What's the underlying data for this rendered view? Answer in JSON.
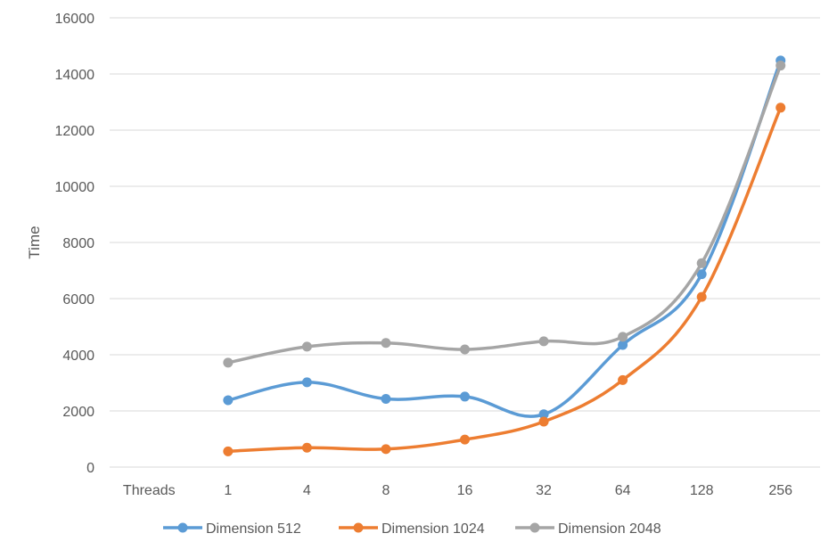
{
  "chart_data": {
    "type": "line",
    "title": "",
    "xlabel": "",
    "ylabel": "Time",
    "category_axis_label": "Threads",
    "categories": [
      "1",
      "4",
      "8",
      "16",
      "32",
      "64",
      "128",
      "256"
    ],
    "ylim": [
      0,
      16000
    ],
    "yticks": [
      0,
      2000,
      4000,
      6000,
      8000,
      10000,
      12000,
      14000,
      16000
    ],
    "grid": true,
    "legend_position": "bottom",
    "series": [
      {
        "name": "Dimension 512",
        "color": "#5B9BD5",
        "values": [
          2380,
          3020,
          2430,
          2510,
          1880,
          4350,
          6870,
          14480
        ]
      },
      {
        "name": "Dimension 1024",
        "color": "#ED7D31",
        "values": [
          560,
          690,
          640,
          980,
          1620,
          3100,
          6060,
          12800
        ]
      },
      {
        "name": "Dimension 2048",
        "color": "#A5A5A5",
        "values": [
          3720,
          4290,
          4420,
          4190,
          4480,
          4640,
          7260,
          14300
        ]
      }
    ]
  }
}
